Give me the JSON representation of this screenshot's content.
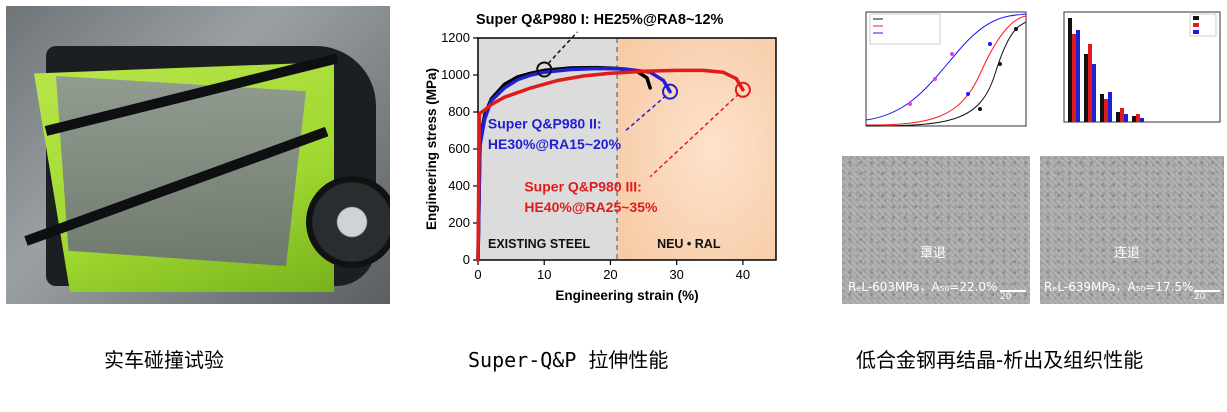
{
  "captions": {
    "left": "实车碰撞试验",
    "middle": "Super-Q&P 拉伸性能",
    "right": "低合金钢再结晶-析出及组织性能"
  },
  "chart_data": {
    "type": "line",
    "title": "",
    "xlabel": "Engineering strain (%)",
    "ylabel": "Engineering stress (MPa)",
    "xlim": [
      0,
      45
    ],
    "ylim": [
      0,
      1200
    ],
    "xticks": [
      0,
      10,
      20,
      30,
      40
    ],
    "yticks": [
      0,
      200,
      400,
      600,
      800,
      1000,
      1200
    ],
    "regions": [
      {
        "label": "EXISTING STEEL",
        "x_range": [
          0,
          21
        ]
      },
      {
        "label": "NEU • RAL",
        "x_range": [
          21,
          45
        ]
      }
    ],
    "series": [
      {
        "name": "Super Q&P980 I",
        "color": "#000000",
        "x": [
          0,
          0.3,
          1,
          2,
          4,
          6,
          8,
          10,
          14,
          18,
          21,
          24,
          25.5,
          26
        ],
        "y": [
          0,
          650,
          780,
          870,
          950,
          990,
          1010,
          1025,
          1038,
          1040,
          1035,
          1020,
          985,
          930
        ]
      },
      {
        "name": "Super Q&P980 II",
        "color": "#1f1fd6",
        "x": [
          0,
          0.3,
          1,
          2,
          4,
          6,
          8,
          10,
          14,
          18,
          22,
          26,
          28,
          29
        ],
        "y": [
          0,
          620,
          760,
          860,
          930,
          975,
          1000,
          1015,
          1030,
          1035,
          1033,
          1015,
          970,
          910
        ]
      },
      {
        "name": "Super Q&P980 III",
        "color": "#e01b1b",
        "x": [
          0,
          0.2,
          1,
          2,
          4,
          8,
          12,
          16,
          20,
          25,
          30,
          34,
          37,
          39,
          40
        ],
        "y": [
          0,
          790,
          810,
          840,
          880,
          930,
          970,
          995,
          1010,
          1020,
          1025,
          1025,
          1015,
          980,
          920
        ]
      }
    ],
    "annotations": [
      {
        "text": "Super Q&P980 I: HE25%@RA8~12%",
        "color": "#000000"
      },
      {
        "text": "Super Q&P980 II:",
        "color": "#1f1fd6"
      },
      {
        "text": "HE30%@RA15~20%",
        "color": "#1f1fd6"
      },
      {
        "text": "Super Q&P980 III:",
        "color": "#e01b1b"
      },
      {
        "text": "HE40%@RA25~35%",
        "color": "#e01b1b"
      }
    ]
  },
  "micrographs": [
    {
      "label": "罩退",
      "props": "RₑL-603MPa，A₅₀=22.0%",
      "scale": "20 μm"
    },
    {
      "label": "连退",
      "props": "RₑL-639MPa，A₅₀=17.5%",
      "scale": "20 μm"
    }
  ]
}
